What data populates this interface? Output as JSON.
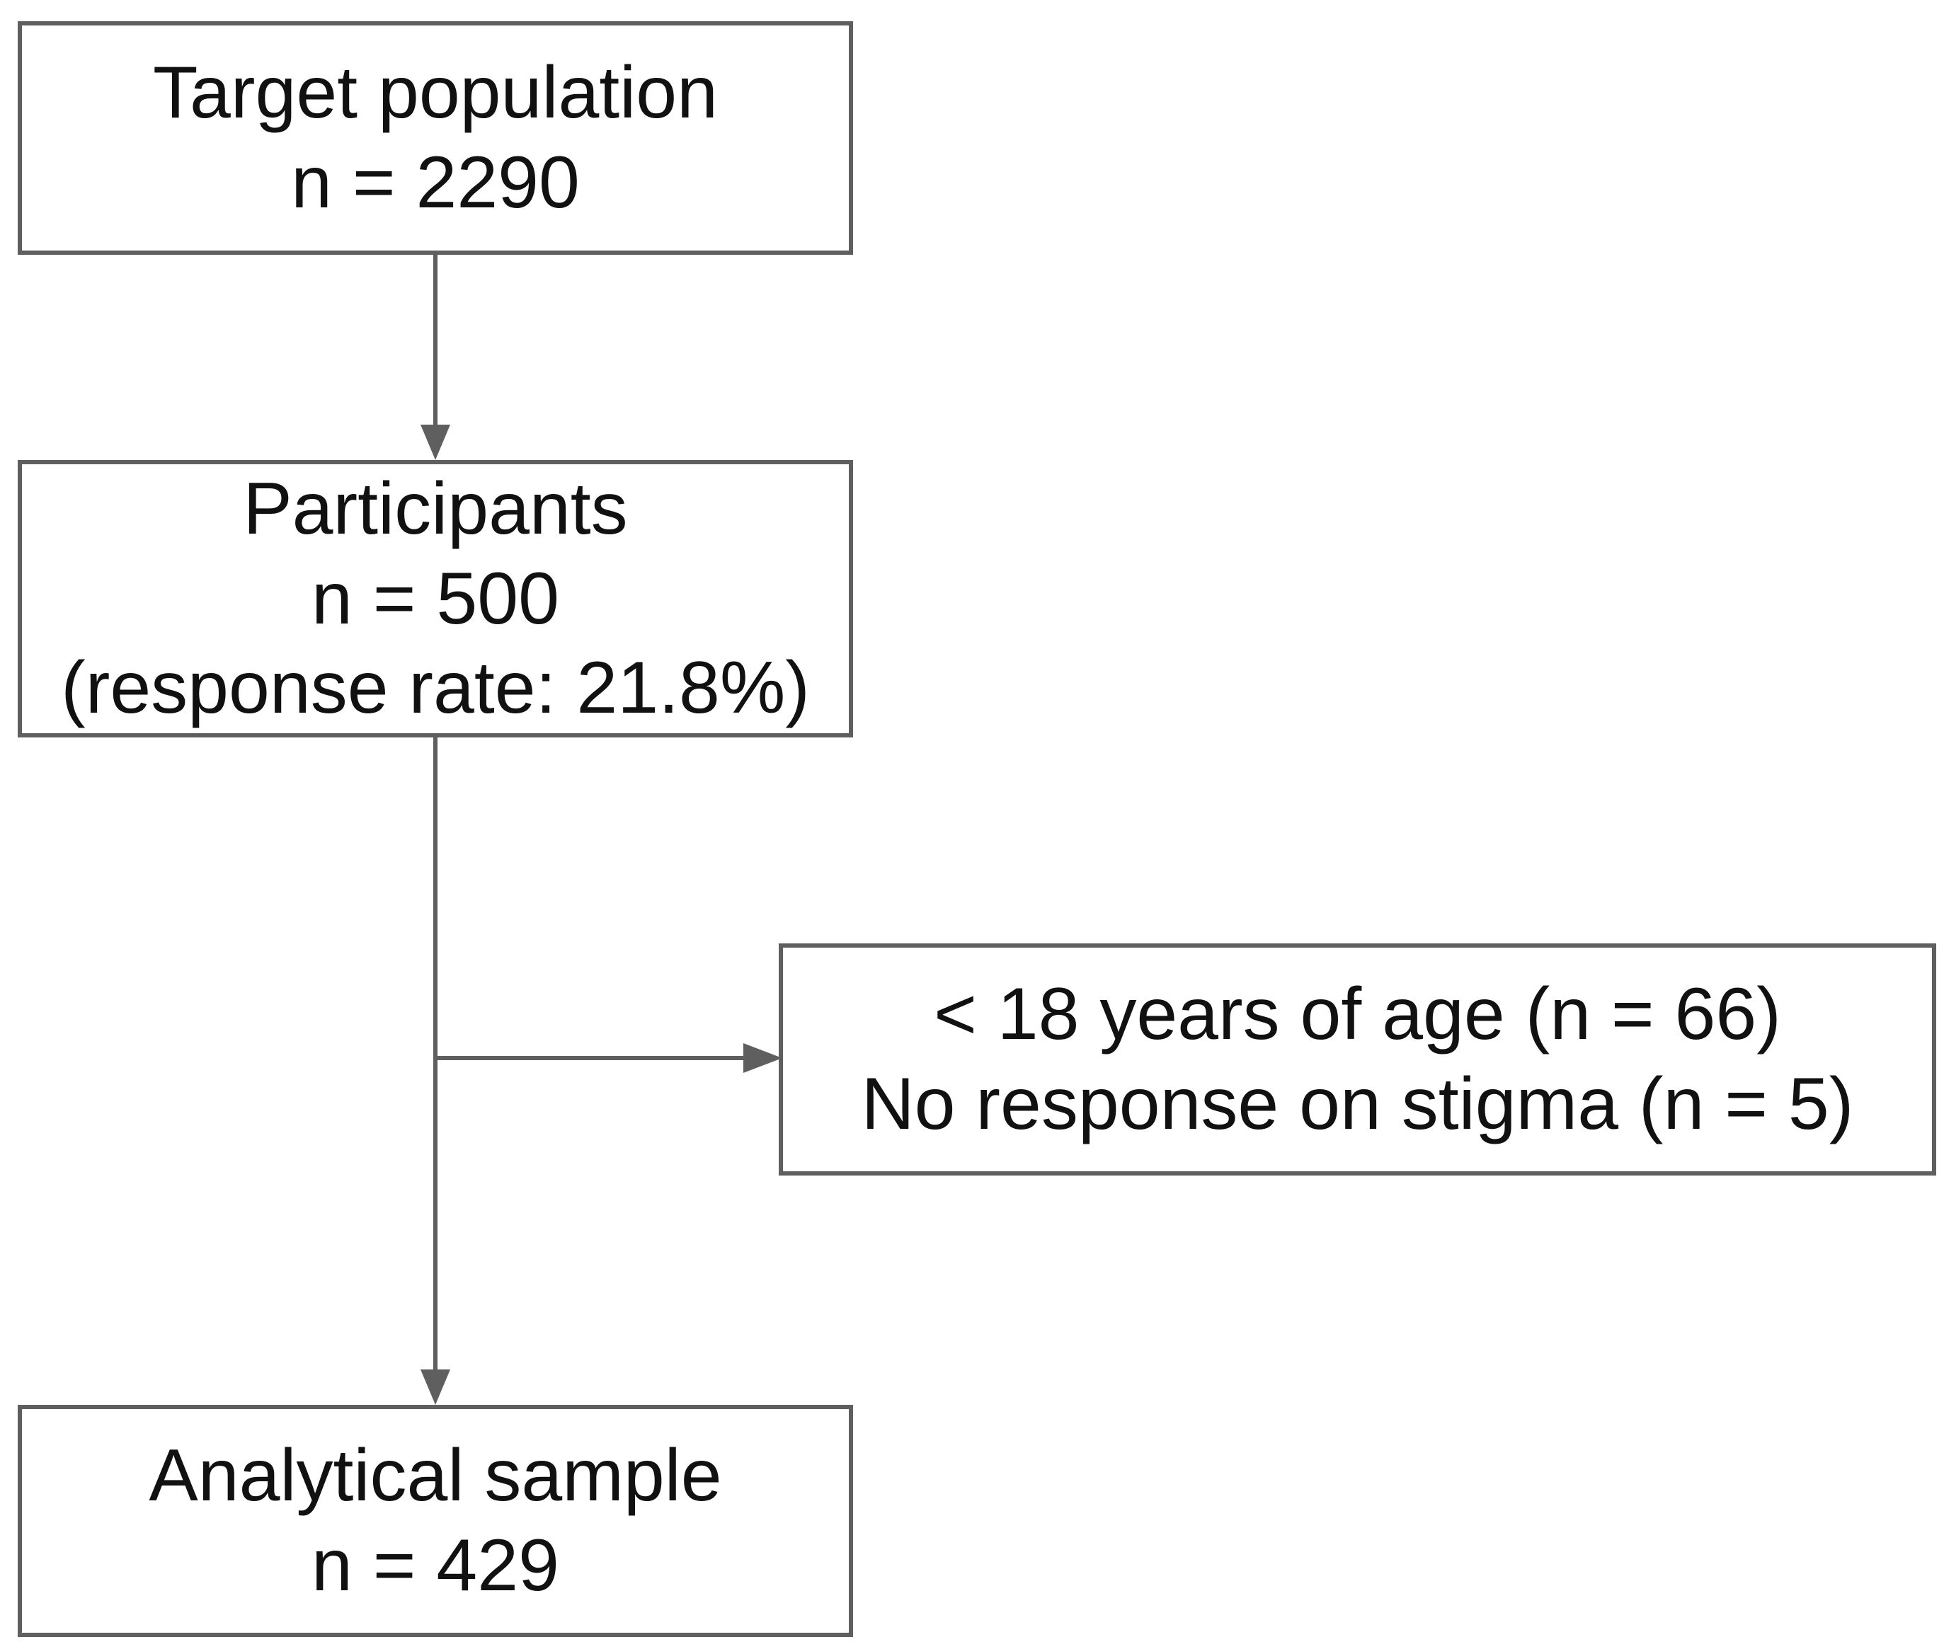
{
  "colors": {
    "stroke": "#5f5f5f",
    "text": "#111111",
    "background": "#ffffff"
  },
  "nodes": {
    "target": {
      "title": "Target population",
      "count": "n = 2290"
    },
    "participants": {
      "title": "Participants",
      "count": "n = 500",
      "note": "(response rate: 21.8%)"
    },
    "exclusion": {
      "line1": "< 18 years of age (n = 66)",
      "line2": "No response on stigma (n = 5)"
    },
    "analytical": {
      "title": "Analytical sample",
      "count": "n = 429"
    }
  },
  "edges": [
    {
      "from": "target",
      "to": "participants"
    },
    {
      "from": "participants",
      "to": "analytical"
    },
    {
      "from": "participants",
      "to": "exclusion"
    }
  ]
}
